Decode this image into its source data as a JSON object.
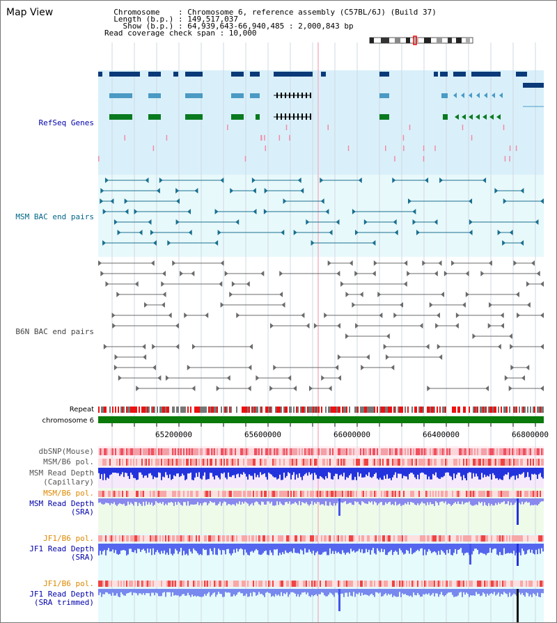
{
  "header": {
    "title": "Map View",
    "info_lines": [
      "  Chromosome    : Chromosome 6, reference assembly (C57BL/6J) (Build 37)",
      "  Length (b.p.) : 149,517,037",
      "    Show (b.p.) : 64,939,643-66,940,485 : 2,000,843 bp",
      "Read coverage check span : 10,000"
    ]
  },
  "tracks": {
    "refseq": {
      "label": "RefSeq Genes",
      "color": "#0000aa"
    },
    "msm_bac": {
      "label": "MSM BAC end pairs",
      "color": "#006688"
    },
    "b6n_bac": {
      "label": "B6N BAC end pairs",
      "color": "#444444"
    },
    "repeat": {
      "label": "Repeat"
    },
    "chrom": {
      "label": "chromosome 6"
    },
    "dbsnp": {
      "label": "dbSNP(Mouse)",
      "color": "#555555"
    },
    "msm_b6_pol_1": {
      "label": "MSM/B6 pol.",
      "color": "#555555"
    },
    "msm_depth_cap": {
      "label1": "MSM Read Depth",
      "label2": "(Capillary)",
      "color": "#555555"
    },
    "msm_b6_pol_2": {
      "label": "MSM/B6 pol.",
      "color": "#dd8800"
    },
    "msm_depth_sra": {
      "label1": "MSM Read Depth",
      "label2": "(SRA)",
      "color": "#0000aa"
    },
    "jf1_b6_pol_1": {
      "label": "JF1/B6 pol.",
      "color": "#dd8800"
    },
    "jf1_depth_sra": {
      "label1": "JF1 Read Depth",
      "label2": "(SRA)",
      "color": "#0000aa"
    },
    "jf1_b6_pol_2": {
      "label": "JF1/B6 pol.",
      "color": "#dd8800"
    },
    "jf1_depth_trim": {
      "label1": "JF1 Read Depth",
      "label2": "(SRA trimmed)",
      "color": "#0000aa"
    }
  },
  "axis": {
    "ticks": [
      "65200000",
      "65600000",
      "66000000",
      "66400000",
      "66800000"
    ]
  }
}
